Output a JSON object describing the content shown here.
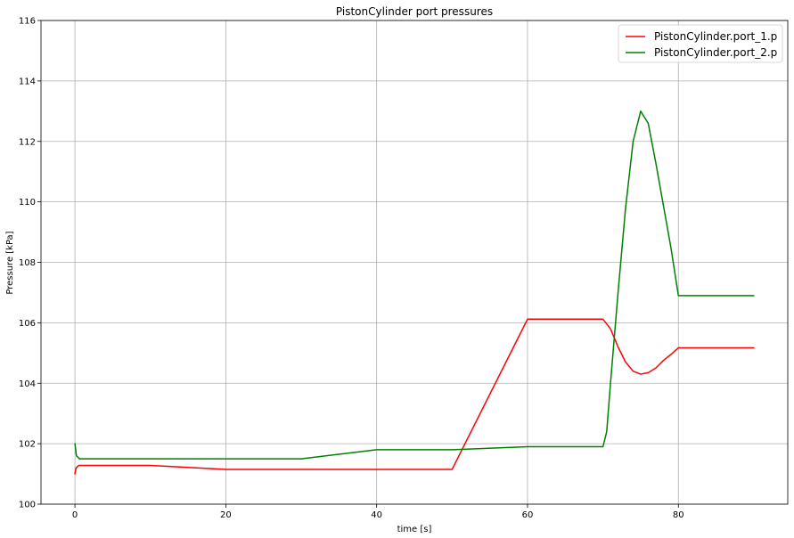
{
  "chart_data": {
    "type": "line",
    "title": "PistonCylinder port pressures",
    "xlabel": "time [s]",
    "ylabel": "Pressure [kPa]",
    "xlim": [
      -4.5,
      94.5
    ],
    "ylim": [
      100,
      116
    ],
    "xticks": [
      0,
      20,
      40,
      60,
      80
    ],
    "yticks": [
      100,
      102,
      104,
      106,
      108,
      110,
      112,
      114,
      116
    ],
    "grid": true,
    "legend_position": "top-right",
    "series": [
      {
        "name": "PistonCylinder.port_1.p",
        "color": "#ff0000",
        "points": [
          [
            0,
            101.0
          ],
          [
            0.15,
            101.2
          ],
          [
            0.5,
            101.28
          ],
          [
            10,
            101.28
          ],
          [
            20,
            101.15
          ],
          [
            50,
            101.15
          ],
          [
            60,
            106.12
          ],
          [
            70,
            106.12
          ],
          [
            71,
            105.8
          ],
          [
            72,
            105.2
          ],
          [
            73,
            104.7
          ],
          [
            74,
            104.4
          ],
          [
            75,
            104.3
          ],
          [
            76,
            104.35
          ],
          [
            77,
            104.5
          ],
          [
            78,
            104.75
          ],
          [
            79,
            104.95
          ],
          [
            80,
            105.17
          ],
          [
            90,
            105.17
          ]
        ]
      },
      {
        "name": "PistonCylinder.port_2.p",
        "color": "#008000",
        "points": [
          [
            0,
            102.0
          ],
          [
            0.2,
            101.6
          ],
          [
            0.6,
            101.5
          ],
          [
            30,
            101.5
          ],
          [
            40,
            101.8
          ],
          [
            50,
            101.8
          ],
          [
            60,
            101.9
          ],
          [
            70,
            101.9
          ],
          [
            70.5,
            102.4
          ],
          [
            71,
            104.0
          ],
          [
            72,
            107.0
          ],
          [
            73,
            109.8
          ],
          [
            74,
            112.0
          ],
          [
            75,
            113.0
          ],
          [
            76,
            112.6
          ],
          [
            77,
            111.3
          ],
          [
            78,
            109.9
          ],
          [
            79,
            108.5
          ],
          [
            80,
            106.9
          ],
          [
            90,
            106.9
          ]
        ]
      }
    ]
  }
}
